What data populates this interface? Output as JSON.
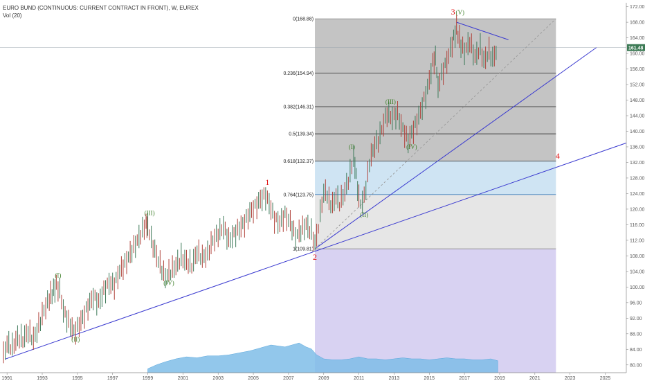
{
  "header": {
    "title": "EURO BUND (CONTINUOUS: CURRENT CONTRACT IN FRONT), W, EUREX",
    "indicator": "Vol (20)"
  },
  "chart_data": {
    "type": "line",
    "ylim": [
      78,
      173
    ],
    "y_ticks": [
      80,
      84,
      88,
      92,
      96,
      100,
      104,
      108,
      112,
      116,
      120,
      124,
      128,
      132,
      136,
      140,
      144,
      148,
      152,
      156,
      160,
      164,
      168,
      172
    ],
    "y_tick_labels": [
      "80.00",
      "84.00",
      "88.00",
      "92.00",
      "96.00",
      "100.00",
      "104.00",
      "108.00",
      "112.00",
      "116.00",
      "120.00",
      "124.00",
      "128.00",
      "132.00",
      "136.00",
      "140.00",
      "144.00",
      "148.00",
      "152.00",
      "156.00",
      "160.00",
      "164.00",
      "168.00",
      "172.00"
    ],
    "xlim": [
      1990.6,
      2026.2
    ],
    "x_ticks": [
      1991,
      1993,
      1995,
      1997,
      1999,
      2001,
      2003,
      2005,
      2007,
      2009,
      2011,
      2013,
      2015,
      2017,
      2019,
      2021,
      2023,
      2025
    ],
    "x_tick_labels": [
      "1991",
      "1993",
      "1995",
      "1997",
      "1999",
      "2001",
      "2003",
      "2005",
      "2007",
      "2009",
      "2011",
      "2013",
      "2015",
      "2017",
      "2019",
      "2021",
      "2023",
      "2025"
    ],
    "current_price": 161.48,
    "current_price_label": "161.48",
    "price_series": [
      [
        1990.8,
        82.5
      ],
      [
        1991.0,
        85.5
      ],
      [
        1991.3,
        84.5
      ],
      [
        1991.6,
        87.0
      ],
      [
        1991.9,
        86.5
      ],
      [
        1992.2,
        88.5
      ],
      [
        1992.5,
        86.5
      ],
      [
        1992.8,
        90.0
      ],
      [
        1993.1,
        94.0
      ],
      [
        1993.4,
        97.0
      ],
      [
        1993.8,
        100.5
      ],
      [
        1994.0,
        99.0
      ],
      [
        1994.2,
        94.0
      ],
      [
        1994.5,
        91.0
      ],
      [
        1994.8,
        88.5
      ],
      [
        1995.0,
        89.5
      ],
      [
        1995.3,
        92.0
      ],
      [
        1995.6,
        95.0
      ],
      [
        1995.9,
        97.5
      ],
      [
        1996.2,
        96.0
      ],
      [
        1996.5,
        99.0
      ],
      [
        1996.8,
        101.0
      ],
      [
        1997.1,
        100.5
      ],
      [
        1997.4,
        104.0
      ],
      [
        1997.7,
        106.0
      ],
      [
        1998.0,
        108.5
      ],
      [
        1998.3,
        111.0
      ],
      [
        1998.6,
        113.5
      ],
      [
        1998.9,
        116.5
      ],
      [
        1999.0,
        116.0
      ],
      [
        1999.2,
        112.0
      ],
      [
        1999.5,
        108.0
      ],
      [
        1999.8,
        104.5
      ],
      [
        2000.0,
        102.5
      ],
      [
        2000.3,
        104.0
      ],
      [
        2000.6,
        105.5
      ],
      [
        2000.9,
        107.5
      ],
      [
        2001.2,
        106.5
      ],
      [
        2001.5,
        105.5
      ],
      [
        2001.8,
        109.0
      ],
      [
        2002.1,
        107.5
      ],
      [
        2002.4,
        108.5
      ],
      [
        2002.7,
        112.0
      ],
      [
        2003.0,
        113.5
      ],
      [
        2003.3,
        115.5
      ],
      [
        2003.6,
        112.0
      ],
      [
        2003.9,
        113.5
      ],
      [
        2004.2,
        115.0
      ],
      [
        2004.5,
        116.5
      ],
      [
        2004.8,
        119.0
      ],
      [
        2005.1,
        120.5
      ],
      [
        2005.4,
        122.5
      ],
      [
        2005.7,
        123.5
      ],
      [
        2005.9,
        121.5
      ],
      [
        2006.2,
        117.5
      ],
      [
        2006.5,
        116.5
      ],
      [
        2006.8,
        118.5
      ],
      [
        2007.1,
        116.5
      ],
      [
        2007.4,
        113.0
      ],
      [
        2007.7,
        114.5
      ],
      [
        2008.0,
        116.0
      ],
      [
        2008.3,
        114.0
      ],
      [
        2008.5,
        111.0
      ],
      [
        2008.7,
        115.5
      ],
      [
        2008.9,
        122.0
      ],
      [
        2009.1,
        125.0
      ],
      [
        2009.3,
        122.0
      ],
      [
        2009.5,
        121.0
      ],
      [
        2009.7,
        123.5
      ],
      [
        2009.9,
        121.5
      ],
      [
        2010.2,
        124.5
      ],
      [
        2010.5,
        129.0
      ],
      [
        2010.7,
        133.5
      ],
      [
        2010.85,
        128.5
      ],
      [
        2011.0,
        122.5
      ],
      [
        2011.2,
        121.5
      ],
      [
        2011.4,
        125.5
      ],
      [
        2011.6,
        132.0
      ],
      [
        2011.9,
        136.5
      ],
      [
        2012.1,
        137.5
      ],
      [
        2012.4,
        142.0
      ],
      [
        2012.6,
        144.5
      ],
      [
        2012.9,
        143.5
      ],
      [
        2013.2,
        144.5
      ],
      [
        2013.4,
        141.5
      ],
      [
        2013.6,
        139.5
      ],
      [
        2013.8,
        137.5
      ],
      [
        2014.0,
        139.5
      ],
      [
        2014.3,
        142.5
      ],
      [
        2014.6,
        146.5
      ],
      [
        2014.9,
        151.0
      ],
      [
        2015.2,
        157.5
      ],
      [
        2015.35,
        159.0
      ],
      [
        2015.5,
        151.5
      ],
      [
        2015.7,
        154.5
      ],
      [
        2016.0,
        158.0
      ],
      [
        2016.3,
        162.5
      ],
      [
        2016.55,
        166.5
      ],
      [
        2016.8,
        162.0
      ],
      [
        2017.0,
        160.5
      ],
      [
        2017.3,
        163.0
      ],
      [
        2017.6,
        159.0
      ],
      [
        2017.9,
        161.5
      ],
      [
        2018.1,
        158.0
      ],
      [
        2018.4,
        160.5
      ],
      [
        2018.6,
        158.5
      ],
      [
        2018.9,
        161.48
      ]
    ],
    "volume_series": {
      "scale_max": 100,
      "points": [
        [
          1999.0,
          4
        ],
        [
          1999.5,
          8
        ],
        [
          2000.0,
          11
        ],
        [
          2000.6,
          14
        ],
        [
          2001.2,
          16
        ],
        [
          2001.8,
          15
        ],
        [
          2002.4,
          17
        ],
        [
          2003.0,
          17
        ],
        [
          2003.6,
          18
        ],
        [
          2004.2,
          20
        ],
        [
          2004.8,
          22
        ],
        [
          2005.2,
          24
        ],
        [
          2005.6,
          26
        ],
        [
          2006.0,
          28
        ],
        [
          2006.4,
          27
        ],
        [
          2006.8,
          26
        ],
        [
          2007.2,
          28
        ],
        [
          2007.6,
          30
        ],
        [
          2008.0,
          26
        ],
        [
          2008.3,
          24
        ],
        [
          2008.6,
          18
        ],
        [
          2009.0,
          14
        ],
        [
          2009.5,
          13
        ],
        [
          2010.0,
          13
        ],
        [
          2010.5,
          14
        ],
        [
          2011.0,
          16
        ],
        [
          2011.5,
          14
        ],
        [
          2012.0,
          14
        ],
        [
          2012.5,
          13
        ],
        [
          2013.0,
          14
        ],
        [
          2013.5,
          15
        ],
        [
          2014.0,
          14
        ],
        [
          2014.5,
          14
        ],
        [
          2015.0,
          13
        ],
        [
          2015.5,
          14
        ],
        [
          2016.0,
          15
        ],
        [
          2016.5,
          14
        ],
        [
          2017.0,
          14
        ],
        [
          2017.5,
          13
        ],
        [
          2018.0,
          13
        ],
        [
          2018.5,
          14
        ],
        [
          2018.9,
          12
        ]
      ]
    },
    "fibonacci": {
      "x_start": 2008.5,
      "x_end": 2022.2,
      "levels": [
        {
          "ratio": "1",
          "value": 109.81,
          "label": "1(109.81)",
          "color": "#888888"
        },
        {
          "ratio": "0.764",
          "value": 123.75,
          "label": "0.764(123.75)",
          "color": "#3a7ab8"
        },
        {
          "ratio": "0.618",
          "value": 132.37,
          "label": "0.618(132.37)",
          "color": "#222222"
        },
        {
          "ratio": "0.5",
          "value": 139.34,
          "label": "0.5(139.34)",
          "color": "#222222"
        },
        {
          "ratio": "0.382",
          "value": 146.31,
          "label": "0.382(146.31)",
          "color": "#222222"
        },
        {
          "ratio": "0.236",
          "value": 154.94,
          "label": "0.236(154.94)",
          "color": "#222222"
        },
        {
          "ratio": "0",
          "value": 168.88,
          "label": "0(168.88)",
          "color": "#888888"
        }
      ]
    },
    "trendlines": [
      {
        "from": [
          1990.9,
          81.5
        ],
        "to": [
          2026.2,
          137.0
        ],
        "color": "#3a3ad0"
      },
      {
        "from": [
          2008.5,
          109.81
        ],
        "to": [
          2024.5,
          161.5
        ],
        "color": "#3a3ad0"
      },
      {
        "from": [
          2016.55,
          168.0
        ],
        "to": [
          2019.5,
          163.5
        ],
        "color": "#3a3ad0"
      },
      {
        "from": [
          2008.5,
          109.81
        ],
        "to": [
          2022.2,
          168.88
        ],
        "color": "#999999",
        "dashed": true
      }
    ],
    "wave_labels_major": [
      {
        "text": "1",
        "x": 2005.8,
        "y": 126.2
      },
      {
        "text": "2",
        "x": 2008.5,
        "y": 107.0
      },
      {
        "text": "3",
        "x": 2016.35,
        "y": 170.0
      },
      {
        "text": "4",
        "x": 2022.3,
        "y": 133.0
      }
    ],
    "wave_labels_minor": [
      {
        "text": "(V)",
        "x": 2016.75,
        "y": 170.0
      },
      {
        "text": "(I)",
        "x": 1993.9,
        "y": 102.5
      },
      {
        "text": "(II)",
        "x": 1994.9,
        "y": 86.0
      },
      {
        "text": "(III)",
        "x": 1999.1,
        "y": 118.5
      },
      {
        "text": "(IV)",
        "x": 2000.2,
        "y": 100.5
      },
      {
        "text": "(I)",
        "x": 2010.6,
        "y": 135.5
      },
      {
        "text": "(II)",
        "x": 2011.3,
        "y": 118.0
      },
      {
        "text": "(III)",
        "x": 2012.8,
        "y": 147.0
      },
      {
        "text": "(IV)",
        "x": 2014.0,
        "y": 135.5
      }
    ],
    "colors": {
      "candle_up": "#3e7a5a",
      "candle_down": "#b0423a",
      "volume_fill": "#7fbde8",
      "fib_upper_fill": "#c4c4c4",
      "fib_middle_fill": "#cfe4f3",
      "fib_lower_fill": "#e6e6e6",
      "fib_bottom_fill": "#d8d2f2",
      "price_tag_bg": "#3c7a55"
    }
  }
}
